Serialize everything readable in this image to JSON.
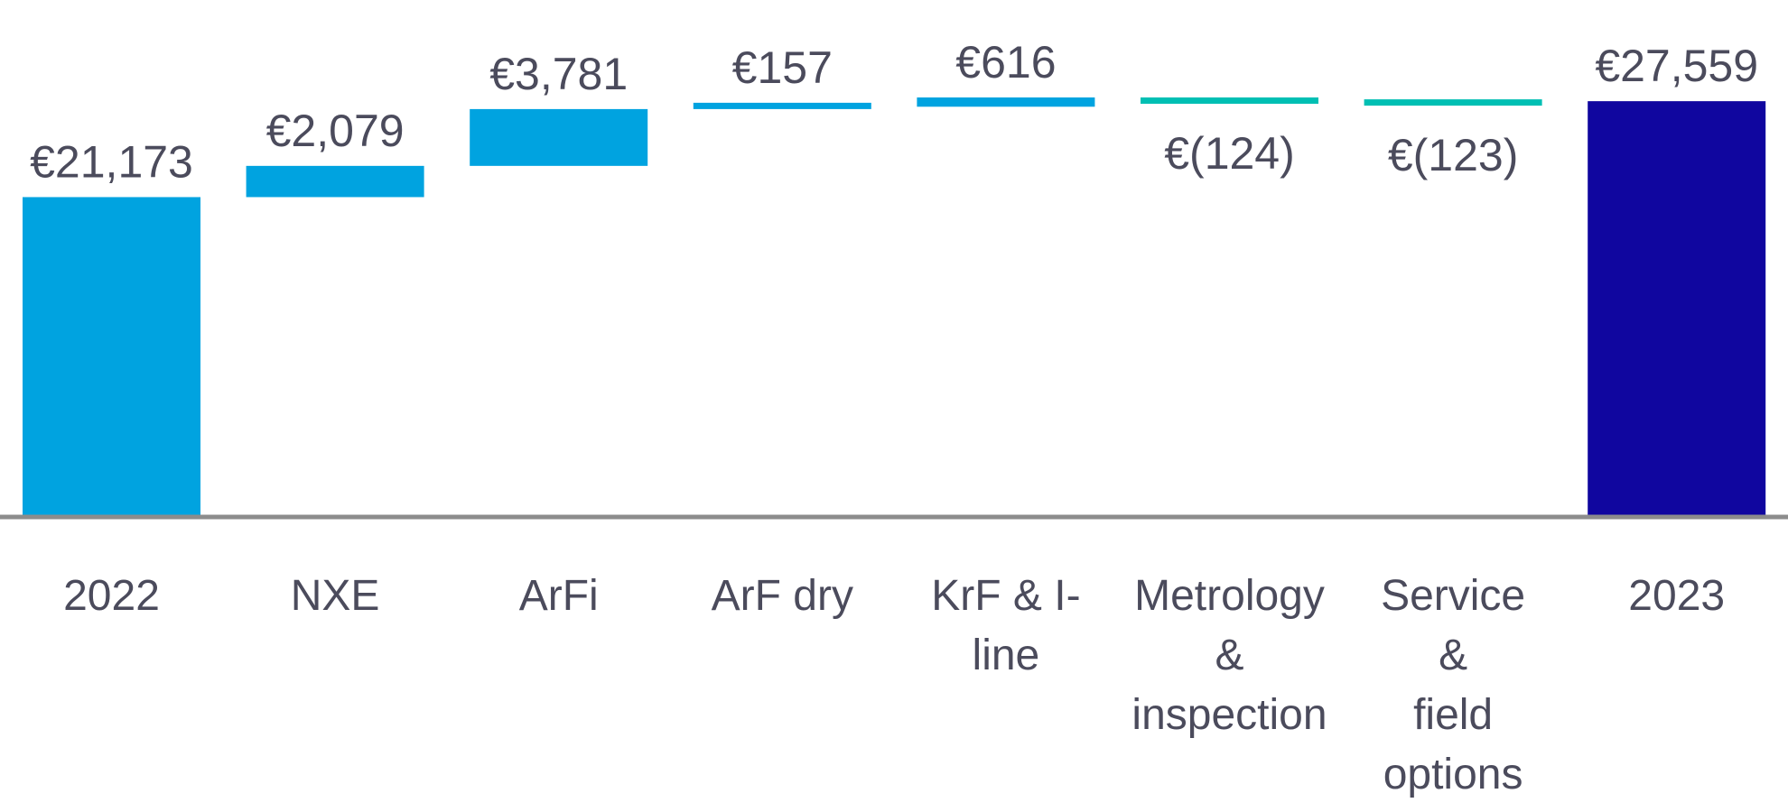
{
  "chart_data": {
    "type": "waterfall",
    "title": "",
    "xlabel": "",
    "ylabel": "",
    "grid": false,
    "categories": [
      "2022",
      "NXE",
      "ArFi",
      "ArF dry",
      "KrF & I-line",
      "Metrology & inspection",
      "Service & field options",
      "2023"
    ],
    "category_lines": [
      [
        "2022"
      ],
      [
        "NXE"
      ],
      [
        "ArFi"
      ],
      [
        "ArF dry"
      ],
      [
        "KrF & I-",
        "line"
      ],
      [
        "Metrology",
        "&",
        "inspection"
      ],
      [
        "Service",
        "&",
        "field",
        "options"
      ],
      [
        "2023"
      ]
    ],
    "values": [
      21173,
      2079,
      3781,
      157,
      616,
      -124,
      -123,
      27559
    ],
    "kinds": [
      "total",
      "delta",
      "delta",
      "delta",
      "delta",
      "delta",
      "delta",
      "total"
    ],
    "data_labels": [
      "€21,173",
      "€2,079",
      "€3,781",
      "€157",
      "€616",
      "€(124)",
      "€(123)",
      "€27,559"
    ],
    "colors": {
      "start_total": "#00A3E0",
      "increase": "#00A3E0",
      "decrease": "#00BFB3",
      "end_total": "#10069F",
      "axis": "#8C8C8C",
      "text": "#4B4B5C"
    }
  }
}
